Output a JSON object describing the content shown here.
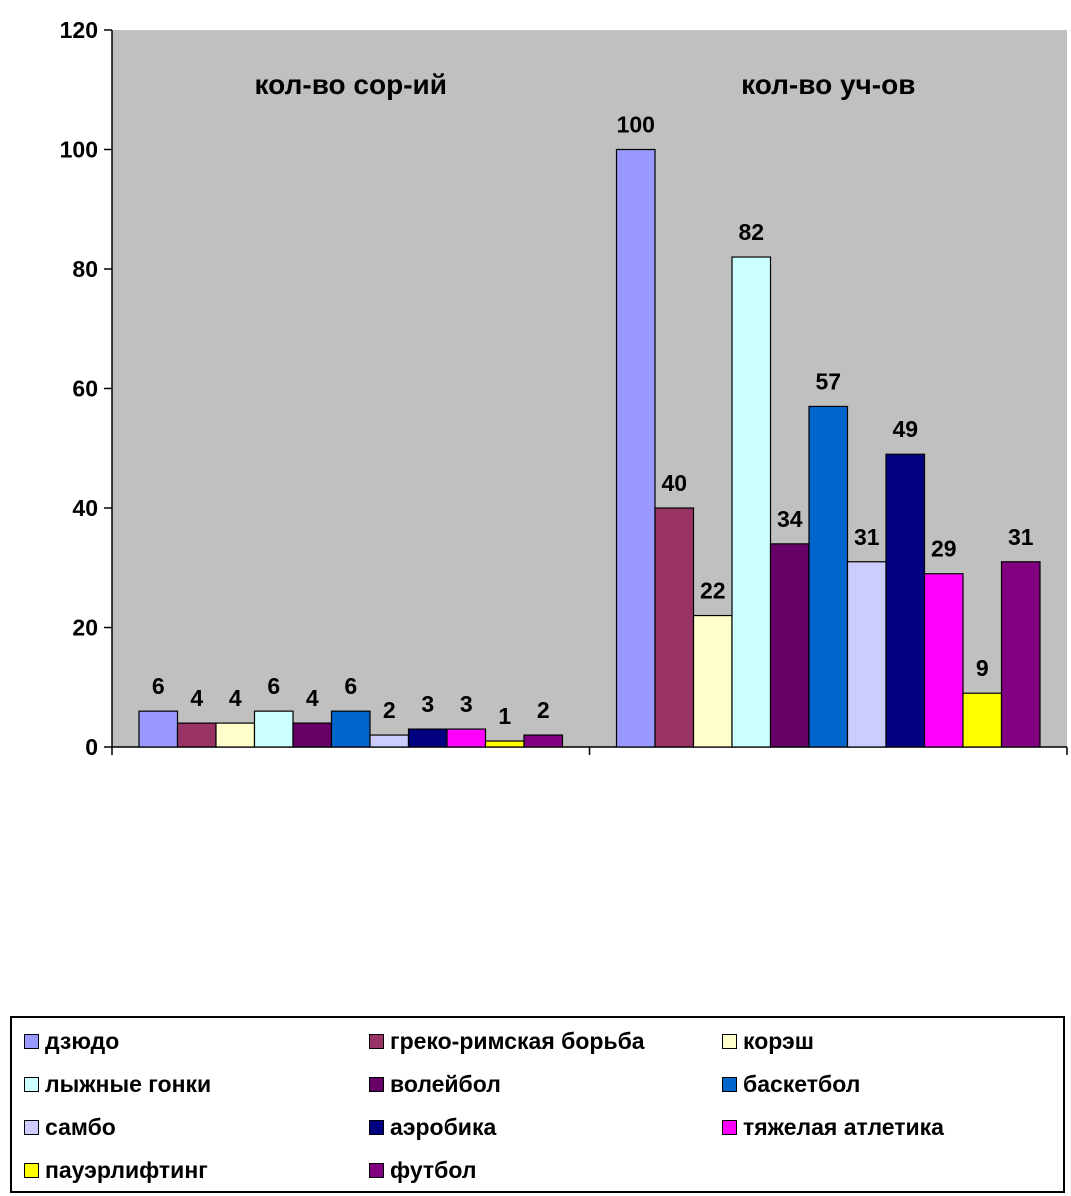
{
  "chart_data": {
    "type": "bar",
    "categories": [
      "кол-во сор-ий",
      "кол-во уч-ов"
    ],
    "series": [
      {
        "name": "дзюдо",
        "color": "#9999ff",
        "values": [
          6,
          100
        ]
      },
      {
        "name": "греко-римская борьба",
        "color": "#993366",
        "values": [
          4,
          40
        ]
      },
      {
        "name": "корэш",
        "color": "#ffffcc",
        "values": [
          4,
          22
        ]
      },
      {
        "name": "лыжные гонки",
        "color": "#ccffff",
        "values": [
          6,
          82
        ]
      },
      {
        "name": "волейбол",
        "color": "#660066",
        "values": [
          4,
          34
        ]
      },
      {
        "name": "баскетбол",
        "color": "#0066cc",
        "values": [
          6,
          57
        ]
      },
      {
        "name": "самбо",
        "color": "#ccccff",
        "values": [
          2,
          31
        ]
      },
      {
        "name": "аэробика",
        "color": "#000080",
        "values": [
          3,
          49
        ]
      },
      {
        "name": "тяжелая атлетика",
        "color": "#ff00ff",
        "values": [
          3,
          29
        ]
      },
      {
        "name": "пауэрлифтинг",
        "color": "#ffff00",
        "values": [
          1,
          9
        ]
      },
      {
        "name": "футбол",
        "color": "#800080",
        "values": [
          2,
          31
        ]
      }
    ],
    "ylim": [
      0,
      120
    ],
    "yticks": [
      0,
      20,
      40,
      60,
      80,
      100,
      120
    ],
    "plot_background": "#c0c0c0",
    "grid": false,
    "data_labels": true,
    "legend_position": "bottom"
  }
}
